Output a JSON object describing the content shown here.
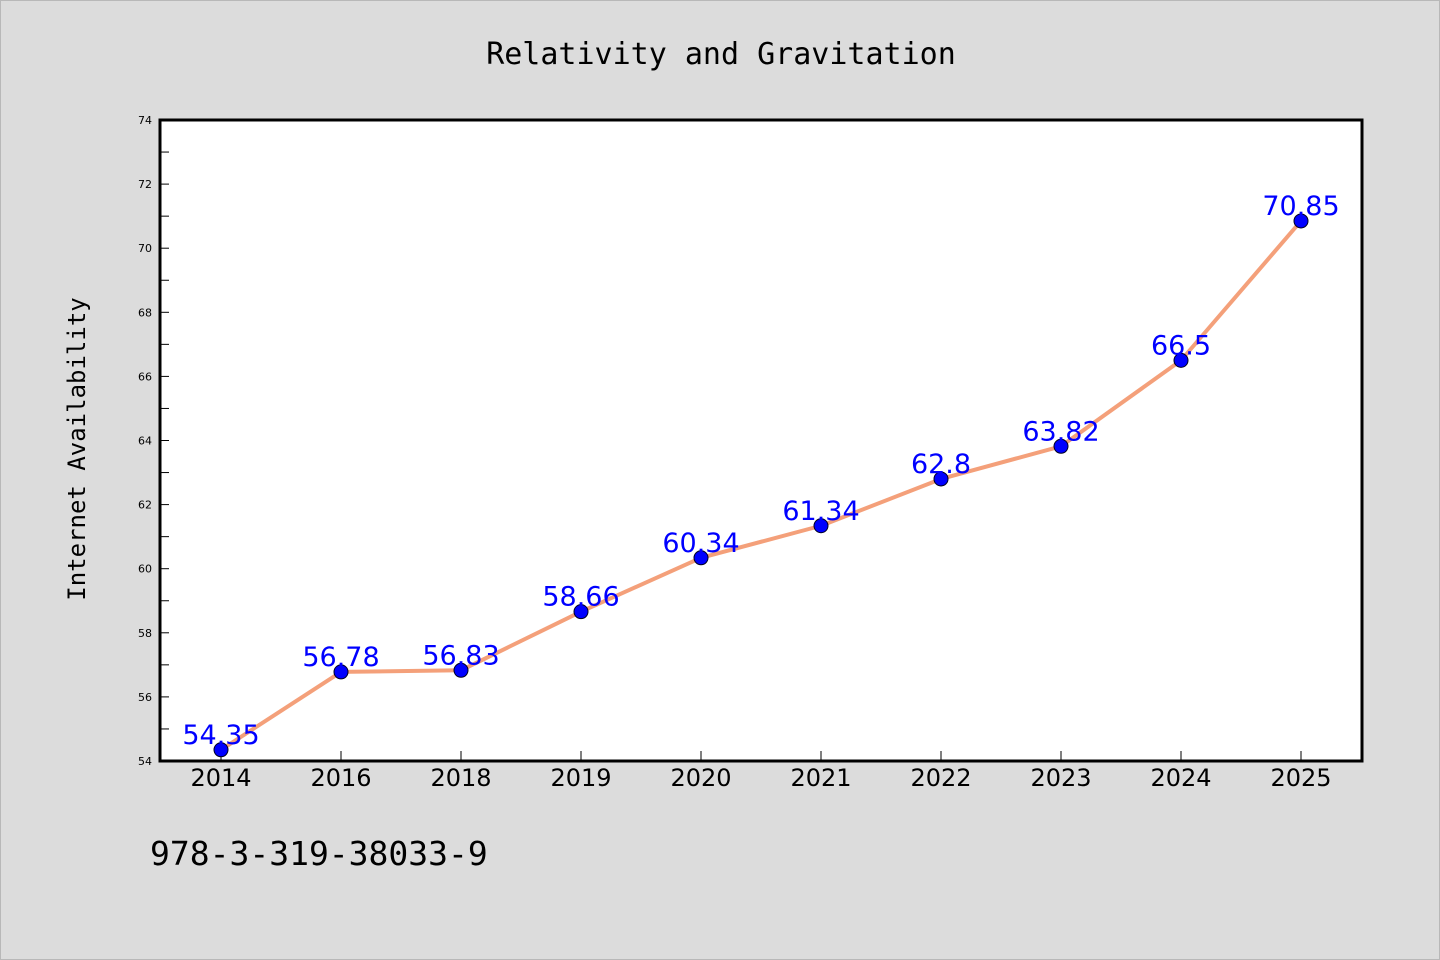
{
  "chart_data": {
    "type": "line",
    "title": "Relativity and Gravitation",
    "xlabel": "",
    "ylabel": "Internet Availability",
    "categories": [
      "2014",
      "2016",
      "2018",
      "2019",
      "2020",
      "2021",
      "2022",
      "2023",
      "2024",
      "2025"
    ],
    "series": [
      {
        "values": [
          54.35,
          56.78,
          56.83,
          58.66,
          60.34,
          61.34,
          62.8,
          63.82,
          66.5,
          70.85
        ],
        "labels": [
          "54.35",
          "56.78",
          "56.83",
          "58.66",
          "60.34",
          "61.34",
          "62.8",
          "63.82",
          "66.5",
          "70.85"
        ],
        "line_color": "#f4a07a",
        "marker_color": "#0000ff"
      }
    ],
    "ylim": [
      54,
      74
    ],
    "yticks": [
      "54",
      "56",
      "58",
      "60",
      "62",
      "64",
      "66",
      "68",
      "70",
      "72",
      "74"
    ],
    "grid": false,
    "legend": "none"
  },
  "footer": {
    "isbn": "978-3-319-38033-9"
  },
  "colors": {
    "background": "#dcdcdc",
    "plot_background": "#ffffff",
    "line": "#f4a07a",
    "marker": "#0000ff",
    "data_label": "#0000ff"
  }
}
